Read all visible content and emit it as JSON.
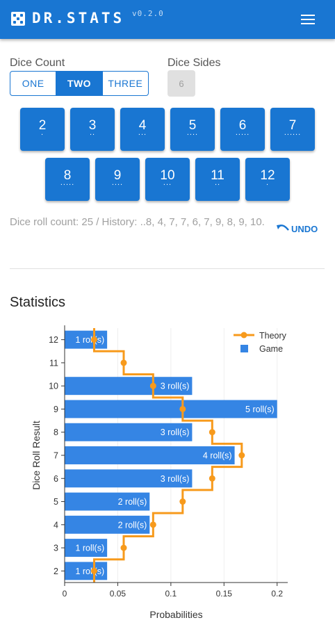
{
  "header": {
    "title": "DR.STATS",
    "version": "v0.2.0",
    "menu_icon": "menu-icon"
  },
  "controls": {
    "dice_count_label": "Dice Count",
    "dice_count_options": [
      "ONE",
      "TWO",
      "THREE"
    ],
    "dice_count_selected": "TWO",
    "dice_sides_label": "Dice Sides",
    "dice_sides_value": "6"
  },
  "dice_buttons": [
    {
      "value": "2",
      "dots": "."
    },
    {
      "value": "3",
      "dots": ".."
    },
    {
      "value": "4",
      "dots": "..."
    },
    {
      "value": "5",
      "dots": "...."
    },
    {
      "value": "6",
      "dots": "....."
    },
    {
      "value": "7",
      "dots": "......"
    },
    {
      "value": "8",
      "dots": "....."
    },
    {
      "value": "9",
      "dots": "...."
    },
    {
      "value": "10",
      "dots": "..."
    },
    {
      "value": "11",
      "dots": ".."
    },
    {
      "value": "12",
      "dots": "."
    }
  ],
  "history": {
    "text": "Dice roll count: 25 / History: ..8, 4, 7, 7, 6, 7, 9, 8, 9, 10.",
    "undo_label": "UNDO"
  },
  "statistics": {
    "title": "Statistics"
  },
  "colors": {
    "primary": "#1976d2",
    "bar": "#3585e4",
    "theory": "#f79a1c"
  },
  "chart_data": {
    "type": "bar",
    "orientation": "horizontal",
    "categories": [
      "2",
      "3",
      "4",
      "5",
      "6",
      "7",
      "8",
      "9",
      "10",
      "11",
      "12"
    ],
    "series": [
      {
        "name": "Game",
        "values": [
          0.04,
          0.04,
          0.08,
          0.08,
          0.12,
          0.16,
          0.12,
          0.2,
          0.12,
          0,
          0.04
        ],
        "labels": [
          "1 roll(s)",
          "1 roll(s)",
          "2 roll(s)",
          "2 roll(s)",
          "3 roll(s)",
          "4 roll(s)",
          "3 roll(s)",
          "5 roll(s)",
          "3 roll(s)",
          "",
          "1 roll(s)"
        ]
      },
      {
        "name": "Theory",
        "values": [
          0.0278,
          0.0556,
          0.0833,
          0.1111,
          0.1389,
          0.1667,
          0.1389,
          0.1111,
          0.0833,
          0.0556,
          0.0278
        ]
      }
    ],
    "xlabel": "Probabilities",
    "ylabel": "Dice Roll Result",
    "xlim": [
      0,
      0.21
    ],
    "xticks": [
      "0",
      "0.05",
      "0.1",
      "0.15",
      "0.2"
    ],
    "xtick_values": [
      0,
      0.05,
      0.1,
      0.15,
      0.2
    ],
    "grid": true,
    "legend": "top-right"
  }
}
